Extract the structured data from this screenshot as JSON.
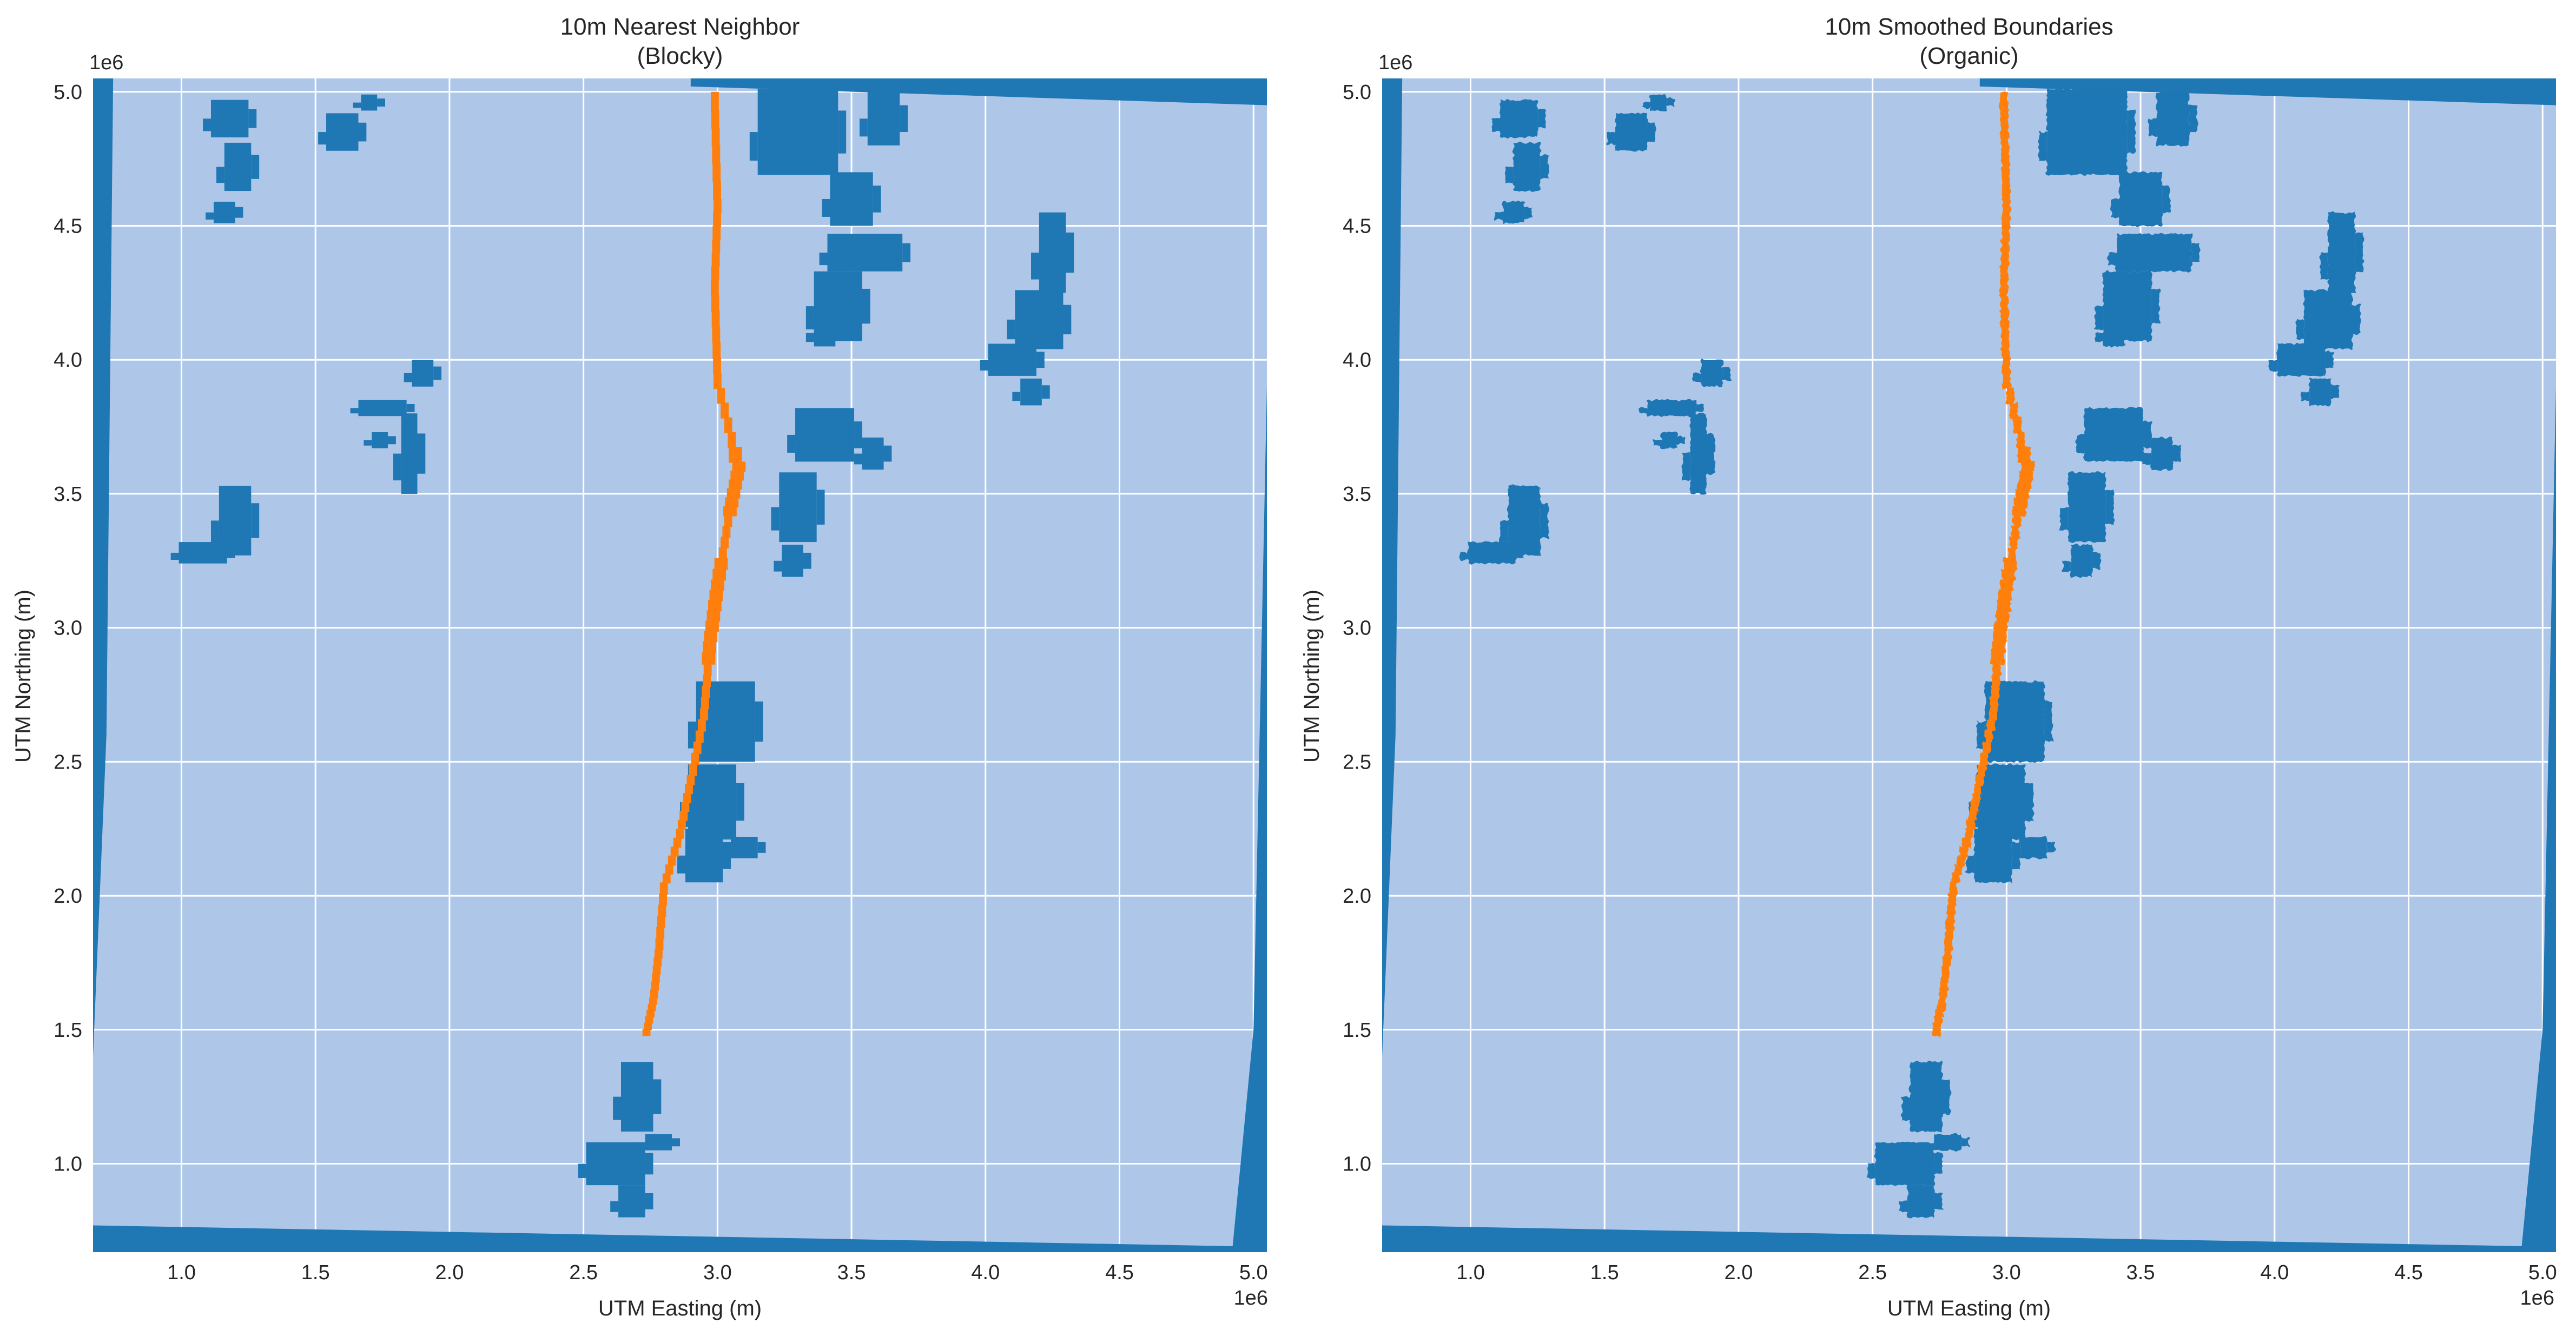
{
  "colors": {
    "background": "#aec7e8",
    "water": "#1f77b4",
    "river": "#ff7f0e",
    "grid": "#ffffff",
    "text": "#262626"
  },
  "chart_data": [
    {
      "type": "heatmap",
      "title_line1": "10m Nearest Neighbor",
      "title_line2": "(Blocky)",
      "xlabel": "UTM Easting (m)",
      "ylabel": "UTM Northing (m)",
      "x_offset_label": "1e6",
      "y_offset_label": "1e6",
      "xlim": [
        0.67,
        5.05
      ],
      "ylim": [
        0.67,
        5.05
      ],
      "x_ticks": [
        1.0,
        1.5,
        2.0,
        2.5,
        3.0,
        3.5,
        4.0,
        4.5,
        5.0
      ],
      "x_tick_labels": [
        "1.0",
        "1.5",
        "2.0",
        "2.5",
        "3.0",
        "3.5",
        "4.0",
        "4.5",
        "5.0"
      ],
      "y_ticks": [
        1.0,
        1.5,
        2.0,
        2.5,
        3.0,
        3.5,
        4.0,
        4.5,
        5.0
      ],
      "y_tick_labels": [
        "1.0",
        "1.5",
        "2.0",
        "2.5",
        "3.0",
        "3.5",
        "4.0",
        "4.5",
        "5.0"
      ],
      "grid": true,
      "style": "blocky"
    },
    {
      "type": "heatmap",
      "title_line1": "10m Smoothed Boundaries",
      "title_line2": "(Organic)",
      "xlabel": "UTM Easting (m)",
      "ylabel": "UTM Northing (m)",
      "x_offset_label": "1e6",
      "y_offset_label": "1e6",
      "xlim": [
        0.67,
        5.05
      ],
      "ylim": [
        0.67,
        5.05
      ],
      "x_ticks": [
        1.0,
        1.5,
        2.0,
        2.5,
        3.0,
        3.5,
        4.0,
        4.5,
        5.0
      ],
      "x_tick_labels": [
        "1.0",
        "1.5",
        "2.0",
        "2.5",
        "3.0",
        "3.5",
        "4.0",
        "4.5",
        "5.0"
      ],
      "y_ticks": [
        1.0,
        1.5,
        2.0,
        2.5,
        3.0,
        3.5,
        4.0,
        4.5,
        5.0
      ],
      "y_tick_labels": [
        "1.0",
        "1.5",
        "2.0",
        "2.5",
        "3.0",
        "3.5",
        "4.0",
        "4.5",
        "5.0"
      ],
      "grid": true,
      "style": "organic"
    }
  ],
  "map_features": {
    "water_blobs": [
      [
        [
          1.18,
          4.9,
          0.14,
          0.14
        ],
        [
          1.21,
          4.72,
          0.1,
          0.18
        ],
        [
          1.16,
          4.55,
          0.08,
          0.08
        ]
      ],
      [
        [
          1.6,
          4.85,
          0.12,
          0.14
        ],
        [
          1.7,
          4.96,
          0.06,
          0.06
        ]
      ],
      [
        [
          1.75,
          3.82,
          0.18,
          0.06
        ],
        [
          1.85,
          3.65,
          0.06,
          0.3
        ],
        [
          1.9,
          3.95,
          0.08,
          0.1
        ],
        [
          1.74,
          3.7,
          0.06,
          0.06
        ]
      ],
      [
        [
          1.2,
          3.4,
          0.12,
          0.26
        ],
        [
          1.08,
          3.28,
          0.18,
          0.08
        ]
      ],
      [
        [
          3.3,
          4.85,
          0.3,
          0.32
        ],
        [
          3.5,
          4.6,
          0.16,
          0.2
        ],
        [
          3.55,
          4.4,
          0.28,
          0.14
        ],
        [
          3.45,
          4.2,
          0.18,
          0.26
        ],
        [
          3.4,
          4.1,
          0.08,
          0.1
        ],
        [
          3.62,
          4.9,
          0.12,
          0.2
        ]
      ],
      [
        [
          4.25,
          4.4,
          0.1,
          0.3
        ],
        [
          4.2,
          4.15,
          0.18,
          0.22
        ],
        [
          4.1,
          4.0,
          0.18,
          0.12
        ],
        [
          4.17,
          3.88,
          0.08,
          0.1
        ]
      ],
      [
        [
          3.4,
          3.72,
          0.22,
          0.2
        ],
        [
          3.3,
          3.45,
          0.14,
          0.26
        ],
        [
          3.28,
          3.25,
          0.08,
          0.12
        ],
        [
          3.58,
          3.65,
          0.08,
          0.12
        ]
      ],
      [
        [
          3.03,
          2.65,
          0.22,
          0.3
        ],
        [
          2.98,
          2.35,
          0.18,
          0.28
        ],
        [
          2.95,
          2.15,
          0.14,
          0.2
        ],
        [
          3.1,
          2.18,
          0.1,
          0.08
        ]
      ],
      [
        [
          2.7,
          1.25,
          0.12,
          0.26
        ],
        [
          2.62,
          1.0,
          0.22,
          0.16
        ],
        [
          2.68,
          0.86,
          0.1,
          0.12
        ],
        [
          2.78,
          1.08,
          0.1,
          0.06
        ]
      ]
    ],
    "river": [
      [
        2.99,
        5.0
      ],
      [
        3.0,
        4.6
      ],
      [
        2.99,
        4.3
      ],
      [
        3.0,
        3.95
      ],
      [
        3.08,
        3.62
      ],
      [
        3.04,
        3.42
      ],
      [
        3.0,
        3.18
      ],
      [
        2.97,
        2.95
      ],
      [
        2.95,
        2.7
      ],
      [
        2.9,
        2.45
      ],
      [
        2.86,
        2.25
      ],
      [
        2.8,
        2.05
      ],
      [
        2.78,
        1.8
      ],
      [
        2.76,
        1.62
      ],
      [
        2.73,
        1.48
      ]
    ],
    "borders": {
      "left": [
        [
          0.67,
          5.05
        ],
        [
          0.745,
          5.05
        ],
        [
          0.72,
          2.6
        ],
        [
          0.67,
          1.4
        ]
      ],
      "top": [
        [
          2.9,
          5.05
        ],
        [
          5.05,
          5.05
        ],
        [
          5.05,
          4.95
        ],
        [
          2.9,
          5.02
        ]
      ],
      "bottom": [
        [
          0.67,
          0.67
        ],
        [
          5.05,
          0.67
        ],
        [
          5.05,
          0.69
        ],
        [
          0.67,
          0.77
        ]
      ],
      "right": [
        [
          4.92,
          0.67
        ],
        [
          5.05,
          0.67
        ],
        [
          5.05,
          3.9
        ],
        [
          5.0,
          1.5
        ]
      ]
    }
  }
}
